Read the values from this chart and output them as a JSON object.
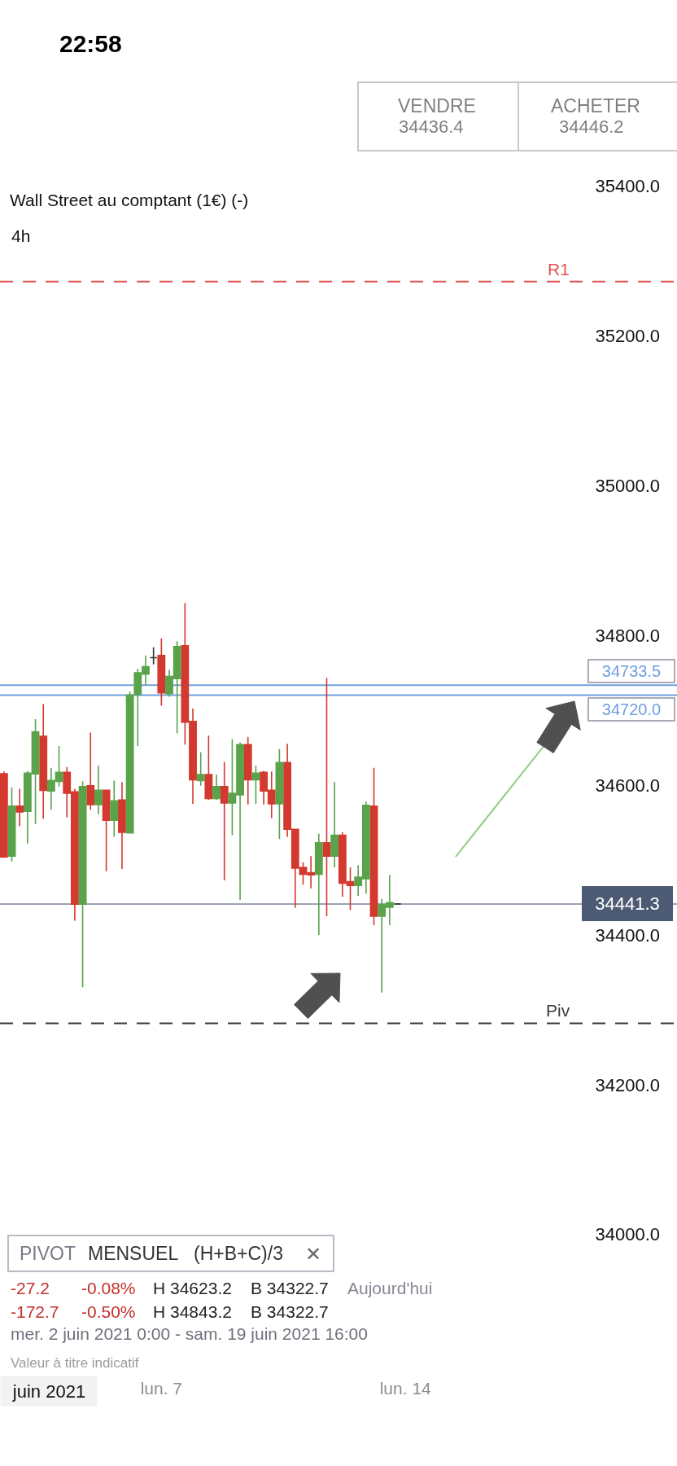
{
  "chart_data": {
    "type": "candlestick",
    "title": "Wall Street au comptant (1€) (-)",
    "subtitle": "4h",
    "categories": [
      null,
      null,
      null,
      null,
      null,
      null,
      null,
      null,
      null,
      null,
      null,
      null,
      null,
      null,
      null,
      null,
      null,
      null,
      null,
      null,
      "lun. 7",
      null,
      null,
      null,
      null,
      null,
      null,
      null,
      null,
      null,
      null,
      null,
      null,
      null,
      null,
      null,
      null,
      null,
      null,
      null,
      null,
      null,
      null,
      null,
      null,
      null,
      null,
      null,
      null,
      null,
      null,
      "lun. 14",
      null,
      null,
      null,
      null,
      null,
      null,
      null,
      null,
      null,
      null,
      null,
      null,
      null,
      null,
      null,
      null,
      null,
      null,
      null,
      null,
      null,
      null,
      null,
      null,
      null,
      null,
      null,
      null,
      null,
      null,
      null,
      null,
      null,
      null
    ],
    "ohlc": [
      [
        34615,
        34618,
        34503,
        34504
      ],
      [
        34505,
        34597,
        34498,
        34572
      ],
      [
        34572,
        34595,
        34545,
        34564
      ],
      [
        34565,
        34619,
        34522,
        34616
      ],
      [
        34615,
        34688,
        34548,
        34671
      ],
      [
        34665,
        34708,
        34555,
        34593
      ],
      [
        34592,
        34623,
        34567,
        34606
      ],
      [
        34605,
        34652,
        34598,
        34617
      ],
      [
        34617,
        34624,
        34557,
        34589
      ],
      [
        34591,
        34595,
        34419,
        34441
      ],
      [
        34441,
        34605,
        34330,
        34598
      ],
      [
        34599,
        34670,
        34567,
        34574
      ],
      [
        34574,
        34626,
        34561,
        34593
      ],
      [
        34593,
        34593,
        34485,
        34553
      ],
      [
        34553,
        34606,
        34531,
        34579
      ],
      [
        34580,
        34604,
        34488,
        34537
      ],
      [
        34536,
        34725,
        34536,
        34720
      ],
      [
        34721,
        34755,
        34652,
        34750
      ],
      [
        34748,
        34773,
        34733,
        34758
      ],
      [
        34770,
        34784,
        34761,
        34770
      ],
      [
        34773,
        34796,
        34706,
        34723
      ],
      [
        34722,
        34754,
        34718,
        34745
      ],
      [
        34742,
        34792,
        34669,
        34785
      ],
      [
        34786,
        34843,
        34654,
        34684
      ],
      [
        34685,
        34702,
        34575,
        34607
      ],
      [
        34606,
        34644,
        34599,
        34614
      ],
      [
        34614,
        34666,
        34580,
        34582
      ],
      [
        34582,
        34614,
        34580,
        34598
      ],
      [
        34598,
        34631,
        34473,
        34576
      ],
      [
        34576,
        34661,
        34533,
        34589
      ],
      [
        34587,
        34657,
        34447,
        34654
      ],
      [
        34654,
        34664,
        34574,
        34607
      ],
      [
        34607,
        34626,
        34575,
        34616
      ],
      [
        34617,
        34619,
        34574,
        34592
      ],
      [
        34593,
        34618,
        34556,
        34575
      ],
      [
        34575,
        34648,
        34528,
        34630
      ],
      [
        34630,
        34655,
        34531,
        34541
      ],
      [
        34541,
        34541,
        34436,
        34489
      ],
      [
        34490,
        34497,
        34467,
        34481
      ],
      [
        34483,
        34505,
        34462,
        34480
      ],
      [
        34481,
        34535,
        34400,
        34523
      ],
      [
        34523,
        34743,
        34425,
        34505
      ],
      [
        34505,
        34604,
        34490,
        34533
      ],
      [
        34533,
        34537,
        34451,
        34469
      ],
      [
        34471,
        34490,
        34433,
        34466
      ],
      [
        34466,
        34493,
        34452,
        34477
      ],
      [
        34475,
        34578,
        34455,
        34573
      ],
      [
        34572,
        34623,
        34413,
        34425
      ],
      [
        34425,
        34448,
        34323,
        34440
      ],
      [
        34437,
        34480,
        34413,
        34443
      ],
      [
        34441.3,
        34441.3,
        34441.3,
        34441.3
      ],
      null,
      null,
      null,
      null,
      null,
      null,
      null,
      null,
      null,
      null,
      null,
      null,
      null,
      null,
      null,
      null,
      null,
      null,
      null,
      null,
      null,
      null,
      null,
      null,
      null,
      null,
      null,
      null,
      null,
      null,
      null,
      null,
      null,
      null,
      null
    ],
    "colors": [
      "#d3392e",
      "#5aa34b",
      "#d3392e",
      "#5aa34b",
      "#5aa34b",
      "#d3392e",
      "#5aa34b",
      "#5aa34b",
      "#d3392e",
      "#d3392e",
      "#5aa34b",
      "#d3392e",
      "#5aa34b",
      "#d3392e",
      "#5aa34b",
      "#d3392e",
      "#5aa34b",
      "#5aa34b",
      "#5aa34b",
      "#333333",
      "#d3392e",
      "#5aa34b",
      "#5aa34b",
      "#d3392e",
      "#d3392e",
      "#5aa34b",
      "#d3392e",
      "#5aa34b",
      "#d3392e",
      "#5aa34b",
      "#5aa34b",
      "#d3392e",
      "#5aa34b",
      "#d3392e",
      "#d3392e",
      "#5aa34b",
      "#d3392e",
      "#d3392e",
      "#d3392e",
      "#d3392e",
      "#5aa34b",
      "#d3392e",
      "#5aa34b",
      "#d3392e",
      "#d3392e",
      "#5aa34b",
      "#5aa34b",
      "#d3392e",
      "#5aa34b",
      "#5aa34b",
      "#333333",
      null,
      null,
      null,
      null,
      null,
      null,
      null,
      null,
      null,
      null,
      null,
      null,
      null,
      null,
      null,
      null,
      null,
      null,
      null,
      null,
      null,
      null,
      null,
      null,
      null,
      null,
      null,
      null,
      null,
      null,
      null,
      null,
      null,
      null,
      null
    ],
    "ylim": [
      33691,
      35648
    ],
    "yticks": [
      {
        "value": 35400,
        "label": "35400.0"
      },
      {
        "value": 35200,
        "label": "35200.0"
      },
      {
        "value": 35000,
        "label": "35000.0"
      },
      {
        "value": 34800,
        "label": "34800.0"
      },
      {
        "value": 34600,
        "label": "34600.0"
      },
      {
        "value": 34400,
        "label": "34400.0"
      },
      {
        "value": 34200,
        "label": "34200.0"
      },
      {
        "value": 34000,
        "label": "34000.0"
      }
    ],
    "ref_lines": [
      {
        "axis": "y",
        "value": 35272,
        "label": "R1",
        "color": "#e0534a",
        "line_style": "dashed"
      },
      {
        "axis": "y",
        "value": 34282,
        "label": "Piv",
        "color": "#3a3a3a",
        "line_style": "dashed"
      },
      {
        "axis": "y",
        "value": 34733.5,
        "label": "34733.5",
        "color": "#6f9fe0",
        "line_style": "solid"
      },
      {
        "axis": "y",
        "value": 34720.0,
        "label": "34720.0",
        "color": "#6f9fe0",
        "line_style": "solid"
      },
      {
        "axis": "y",
        "value": 34441.3,
        "label": "34441.3",
        "color": "#9aa3b3",
        "line_style": "solid"
      }
    ],
    "annotations": [
      "22:58",
      "VENDRE",
      "34436.4",
      "ACHETER",
      "34446.2",
      "PIVOT",
      "MENSUEL",
      "(H+B+C)/3",
      "✕",
      "-27.2",
      "-0.08%",
      "H 34623.2",
      "B 34322.7",
      "Aujourd'hui",
      "-172.7",
      "-0.50%",
      "H 34843.2",
      "B 34322.7",
      "mer. 2 juin 2021 0:00 - sam. 19 juin 2021 16:00",
      "Valeur à titre indicatif",
      "juin 2021"
    ]
  }
}
